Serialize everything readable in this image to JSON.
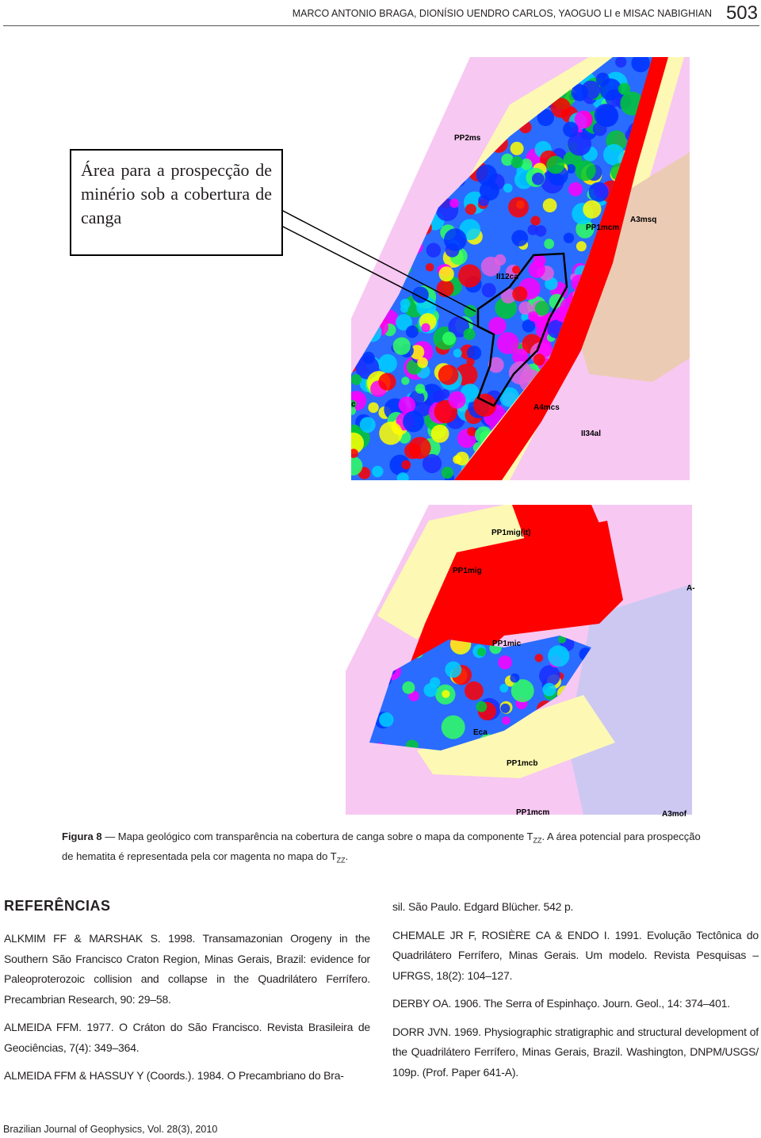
{
  "header": {
    "authors": "MARCO ANTONIO BRAGA, DIONÍSIO UENDRO CARLOS, YAOGUO LI e MISAC NABIGHIAN",
    "page_number": "503"
  },
  "figure": {
    "callout": "Área para a prospecção de minério sob a cobertura de canga",
    "map_top_labels": [
      "PP2ms",
      "PP1mcm",
      "A3msq",
      "II12ca",
      "A4mcs",
      "II34al",
      "c"
    ],
    "map_bottom_labels": [
      "PP1mig(it)",
      "PP1mig",
      "A-",
      "PP1mic",
      "Eca",
      "PP1mcb",
      "PP1mcm",
      "A3mof"
    ],
    "caption": {
      "label": "Figura 8",
      "text_1": " — Mapa geológico com transparência na cobertura de canga sobre o mapa da componente T",
      "sub_1": "ZZ",
      "text_2": ". A área potencial para prospecção de hematita é representada pela cor magenta no mapa do T",
      "sub_2": "ZZ",
      "text_3": "."
    }
  },
  "references": {
    "title": "REFERÊNCIAS",
    "left": [
      "ALKMIM FF & MARSHAK S. 1998. Transamazonian Orogeny in the Southern São Francisco Craton Region, Minas Gerais, Brazil: evidence for Paleoproterozoic collision and collapse in the Quadrilátero Ferrífero. Precambrian Research, 90: 29–58.",
      "ALMEIDA FFM. 1977. O Cráton do São Francisco. Revista Brasileira de Geociências, 7(4): 349–364.",
      "ALMEIDA FFM & HASSUY Y (Coords.). 1984. O Precambriano do Bra-"
    ],
    "right": [
      "sil. São Paulo. Edgard Blücher. 542 p.",
      "CHEMALE JR F, ROSIÈRE CA & ENDO I. 1991. Evolução Tectônica do Quadrilátero Ferrífero, Minas Gerais. Um modelo. Revista Pesquisas – UFRGS, 18(2): 104–127.",
      "DERBY OA. 1906. The Serra of Espinhaço. Journ. Geol., 14: 374–401.",
      "DORR JVN. 1969. Physiographic stratigraphic and structural development of the Quadrilátero Ferrífero, Minas Gerais, Brazil. Washington, DNPM/USGS/ 109p. (Prof. Paper 641-A)."
    ]
  },
  "footer": "Brazilian Journal of Geophysics, Vol. 28(3), 2010"
}
